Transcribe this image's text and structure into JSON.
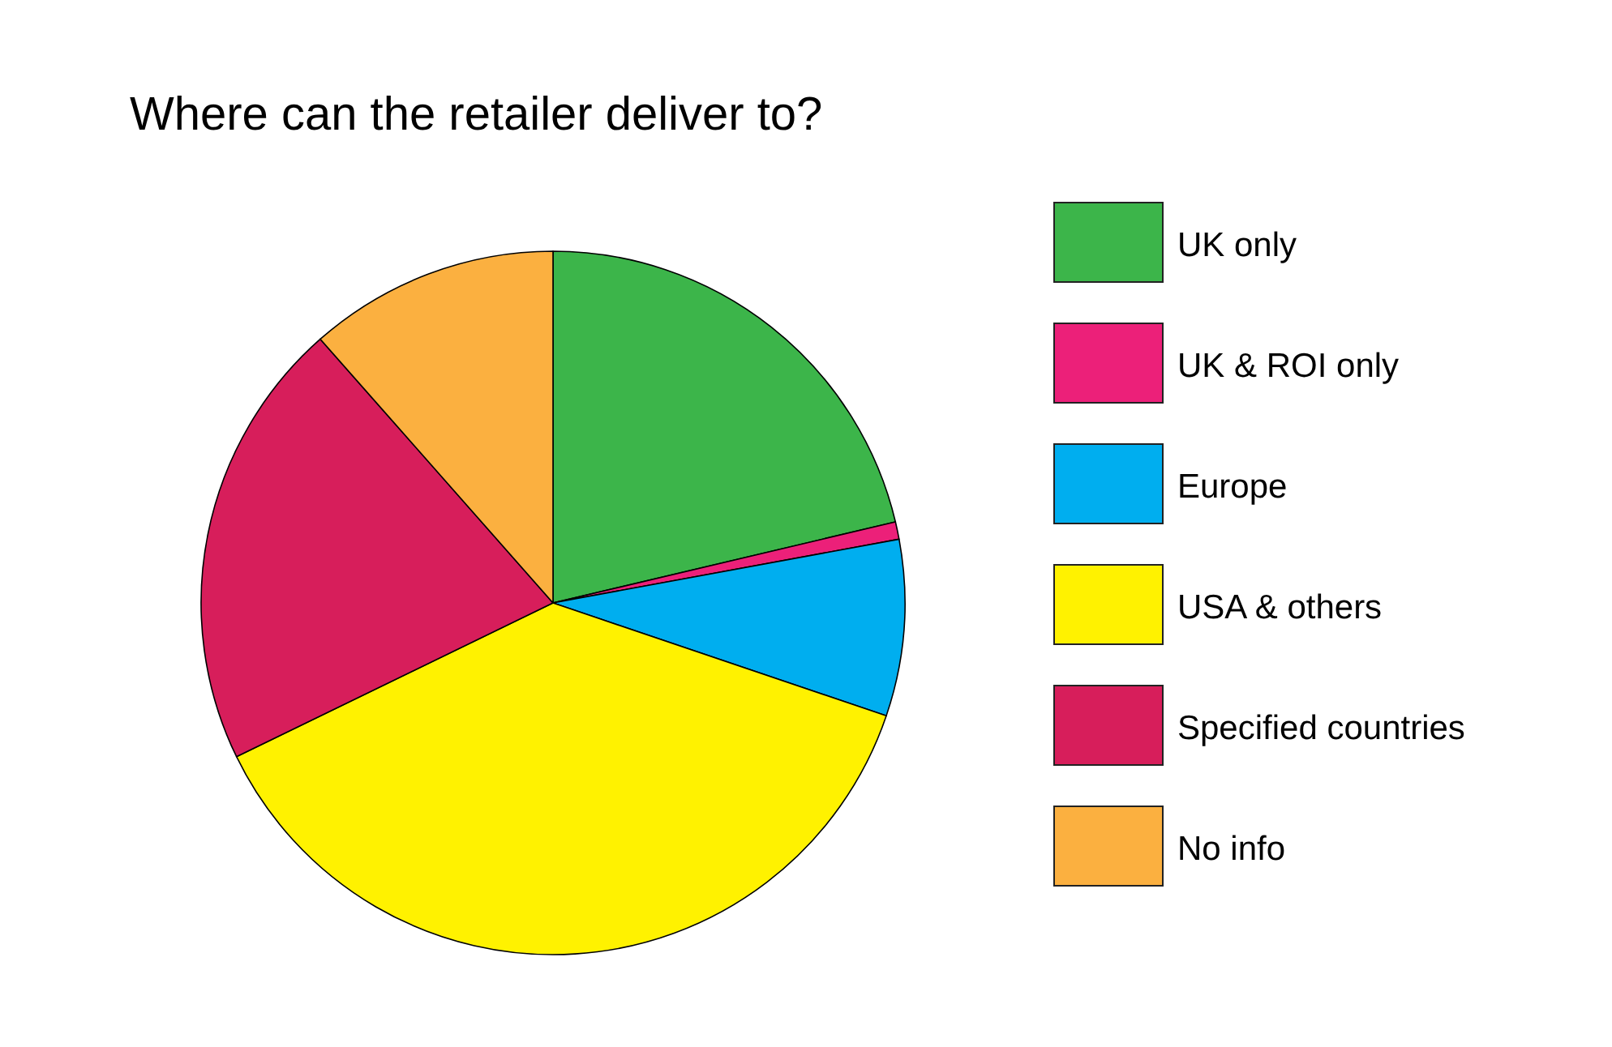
{
  "chart_data": {
    "type": "pie",
    "title": "Where can the retailer deliver to?",
    "categories": [
      "UK only",
      "UK & ROI only",
      "Europe",
      "USA & others",
      "Specified countries",
      "No info"
    ],
    "values": [
      21.3,
      0.8,
      8.1,
      37.6,
      20.7,
      11.5
    ],
    "colors": [
      "#3cb54a",
      "#ec2079",
      "#00aeef",
      "#fff200",
      "#d71e5b",
      "#fbb040"
    ],
    "legend": "right"
  }
}
